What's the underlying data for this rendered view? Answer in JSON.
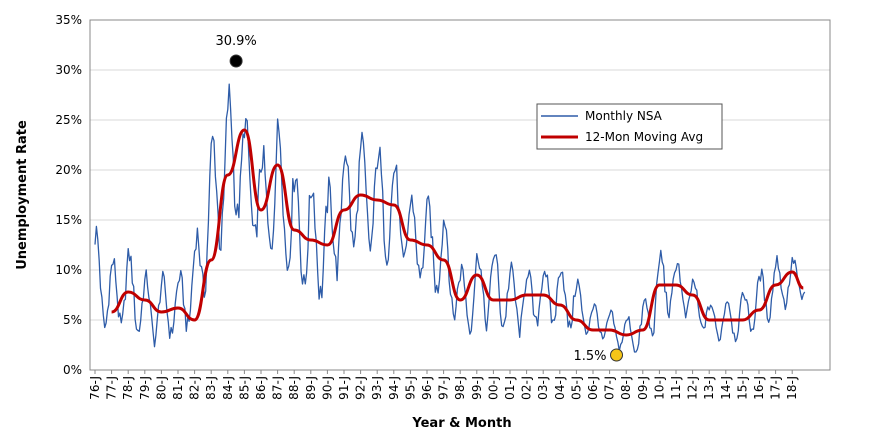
{
  "chart_data": {
    "type": "line",
    "title": "",
    "xlabel": "Year & Month",
    "ylabel": "Unemployment Rate",
    "ylim": [
      0,
      35
    ],
    "y_ticks": [
      "0%",
      "5%",
      "10%",
      "15%",
      "20%",
      "25%",
      "30%",
      "35%"
    ],
    "x_ticks": [
      "76-J",
      "77-J",
      "78-J",
      "79-J",
      "80-J",
      "81-J",
      "82-J",
      "83-J",
      "84-J",
      "85-J",
      "86-J",
      "87-J",
      "88-J",
      "89-J",
      "90-J",
      "91-J",
      "92-J",
      "93-J",
      "94-J",
      "95-J",
      "96-J",
      "97-J",
      "98-J",
      "99-J",
      "00-J",
      "01-J",
      "02-J",
      "03-J",
      "04-J",
      "05-J",
      "06-J",
      "07-J",
      "08-J",
      "09-J",
      "10-J",
      "11-J",
      "12-J",
      "13-J",
      "14-J",
      "15-J",
      "16-J",
      "17-J",
      "18-J"
    ],
    "grid": true,
    "legend_position": "top-right",
    "series": [
      {
        "name": "Monthly NSA",
        "color": "#2e5ca8",
        "annual_mean": [
          9.5,
          7.2,
          8.2,
          6.2,
          6.0,
          6.5,
          8.5,
          16.5,
          21.0,
          20.5,
          16.0,
          18.5,
          14.5,
          13.0,
          12.5,
          17.0,
          17.5,
          17.0,
          16.0,
          13.5,
          12.5,
          11.5,
          7.0,
          8.0,
          8.5,
          7.0,
          7.0,
          7.5,
          7.5,
          6.5,
          5.0,
          4.2,
          3.5,
          3.8,
          8.5,
          8.5,
          7.0,
          5.0,
          5.0,
          5.5,
          7.0,
          8.5,
          9.0
        ],
        "seasonal_amplitude": [
          4.5,
          3.5,
          3.5,
          3.0,
          3.0,
          2.5,
          4.0,
          6.0,
          6.5,
          4.5,
          5.0,
          6.0,
          5.5,
          5.5,
          5.0,
          5.0,
          5.0,
          5.0,
          4.5,
          3.5,
          4.0,
          4.0,
          3.0,
          3.5,
          3.5,
          3.0,
          3.0,
          2.5,
          3.0,
          2.5,
          1.5,
          1.5,
          1.5,
          2.5,
          3.0,
          2.5,
          2.0,
          1.5,
          2.0,
          2.0,
          2.5,
          2.5,
          2.0
        ],
        "max": 30.9,
        "min": 1.5
      },
      {
        "name": "12-Mon Moving Avg",
        "color": "#c00000",
        "x_dates": [
          "1977-01",
          "1978-01",
          "1979-01",
          "1980-01",
          "1981-01",
          "1982-01",
          "1983-01",
          "1984-01",
          "1985-01",
          "1986-01",
          "1987-01",
          "1988-01",
          "1989-01",
          "1990-01",
          "1991-01",
          "1992-01",
          "1993-01",
          "1994-01",
          "1995-01",
          "1996-01",
          "1997-01",
          "1998-01",
          "1999-01",
          "2000-01",
          "2001-01",
          "2002-01",
          "2003-01",
          "2004-01",
          "2005-01",
          "2006-01",
          "2007-01",
          "2008-01",
          "2009-01",
          "2010-01",
          "2011-01",
          "2012-01",
          "2013-01",
          "2014-01",
          "2015-01",
          "2016-01",
          "2017-01",
          "2018-01",
          "2018-09"
        ],
        "values": [
          5.8,
          7.8,
          7.0,
          5.8,
          6.2,
          5.0,
          11.0,
          19.5,
          24.0,
          16.0,
          20.5,
          14.0,
          13.0,
          12.5,
          16.0,
          17.5,
          17.0,
          16.5,
          13.0,
          12.5,
          11.0,
          7.0,
          9.5,
          7.0,
          7.0,
          7.5,
          7.5,
          6.5,
          5.0,
          4.0,
          4.0,
          3.5,
          4.0,
          8.5,
          8.5,
          7.5,
          5.0,
          5.0,
          5.0,
          6.0,
          8.5,
          9.8,
          8.2
        ]
      }
    ],
    "annotations": [
      {
        "label": "30.9%",
        "x_date": "1984-07",
        "y": 30.9,
        "marker_color": "#000000"
      },
      {
        "label": "1.5%",
        "x_date": "2007-06",
        "y": 1.5,
        "marker_color": "#f5c518"
      }
    ]
  }
}
